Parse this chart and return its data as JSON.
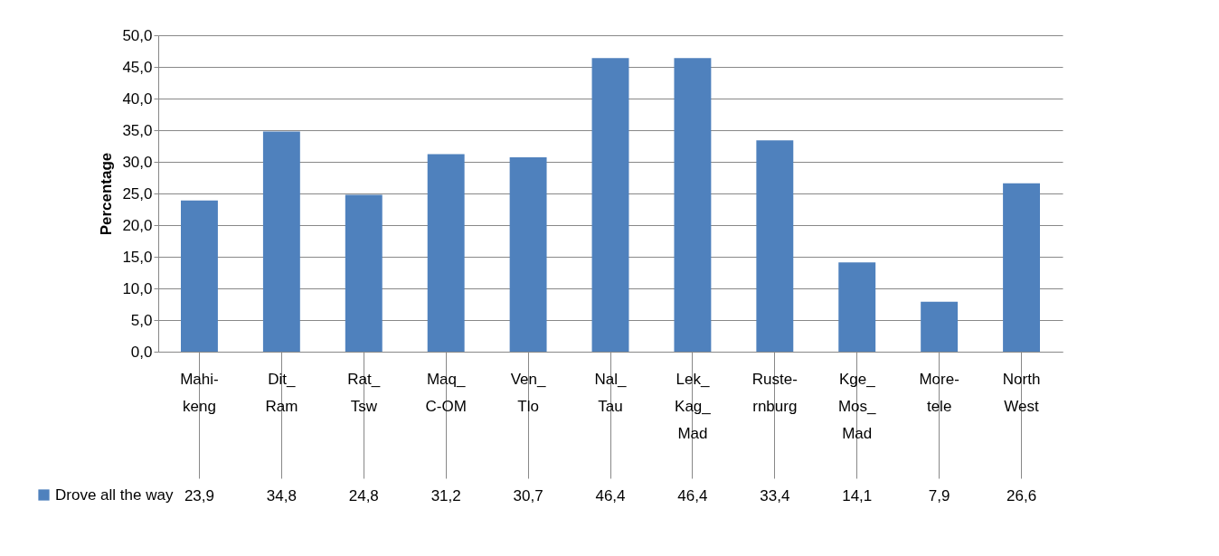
{
  "chart_data": {
    "type": "bar",
    "ylabel": "Percentage",
    "categories": [
      "Mahi-\nkeng",
      "Dit_\nRam",
      "Rat_\nTsw",
      "Maq_\nC-OM",
      "Ven_\nTlo",
      "Nal_\nTau",
      "Lek_\nKag_\nMad",
      "Ruste-\nrnburg",
      "Kge_\nMos_\nMad",
      "More-\ntele",
      "North\nWest"
    ],
    "series": [
      {
        "name": "Drove all the way",
        "color": "#4f81bd",
        "values": [
          23.9,
          34.8,
          24.8,
          31.2,
          30.7,
          46.4,
          46.4,
          33.4,
          14.1,
          7.9,
          26.6
        ],
        "value_labels": [
          "23,9",
          "34,8",
          "24,8",
          "31,2",
          "30,7",
          "46,4",
          "46,4",
          "33,4",
          "14,1",
          "7,9",
          "26,6"
        ]
      }
    ],
    "ylim": [
      0,
      50
    ],
    "yticks": [
      {
        "value": 0,
        "label": "0,0"
      },
      {
        "value": 5,
        "label": "5,0"
      },
      {
        "value": 10,
        "label": "10,0"
      },
      {
        "value": 15,
        "label": "15,0"
      },
      {
        "value": 20,
        "label": "20,0"
      },
      {
        "value": 25,
        "label": "25,0"
      },
      {
        "value": 30,
        "label": "30,0"
      },
      {
        "value": 35,
        "label": "35,0"
      },
      {
        "value": 40,
        "label": "40,0"
      },
      {
        "value": 45,
        "label": "45,0"
      },
      {
        "value": 50,
        "label": "50,0"
      }
    ],
    "grid": "y",
    "legend": "bottom left"
  }
}
